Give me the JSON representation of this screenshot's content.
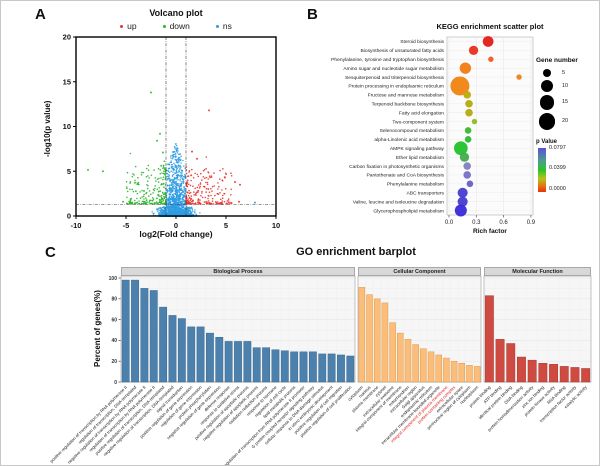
{
  "figure": {
    "panel_a_label": "A",
    "panel_b_label": "B",
    "panel_c_label": "C"
  },
  "chart_data": [
    {
      "panel": "A",
      "type": "scatter",
      "title": "Volcano plot",
      "xlabel": "log2(Fold change)",
      "ylabel": "-log10(p value)",
      "xlim": [
        -10,
        10
      ],
      "ylim": [
        0,
        20
      ],
      "xticks": [
        -10,
        -5,
        0,
        5,
        10
      ],
      "yticks": [
        0,
        5,
        10,
        15,
        20
      ],
      "threshold_lines": {
        "vertical_x": [
          -1,
          1
        ],
        "horizontal_y": 1.3
      },
      "legend": [
        {
          "label": "up",
          "color": "#e8342c"
        },
        {
          "label": "down",
          "color": "#2db52b"
        },
        {
          "label": "ns",
          "color": "#2f9ce3"
        }
      ],
      "point_counts": {
        "up": 240,
        "down": 240,
        "ns": 2600
      },
      "notable_points": {
        "down": [
          [
            -2.5,
            13.8
          ],
          [
            -8.8,
            5.15
          ],
          [
            -7.3,
            5.0
          ],
          [
            -5.3,
            1.6
          ],
          [
            -1.6,
            9.2
          ],
          [
            -1.9,
            8.4
          ],
          [
            -1.3,
            7.1
          ]
        ],
        "up": [
          [
            3.3,
            11.8
          ],
          [
            5.9,
            3.8
          ],
          [
            6.4,
            3.5
          ],
          [
            4.9,
            4.3
          ],
          [
            6.3,
            1.6
          ],
          [
            1.6,
            7.2
          ],
          [
            2.1,
            6.4
          ]
        ],
        "ns": [
          [
            7.9,
            1.5
          ]
        ]
      }
    },
    {
      "panel": "B",
      "type": "bubble",
      "title": "KEGG enrichment scatter plot",
      "xlabel": "Rich factor",
      "xticks": [
        "0.0",
        "0.3",
        "0.6",
        "0.9"
      ],
      "pathways": [
        {
          "name": "Steroid biosynthesis",
          "rich_factor": 0.43,
          "gene_number": 8,
          "color": "#e31e1a"
        },
        {
          "name": "Biosynthesis of unsaturated fatty acids",
          "rich_factor": 0.27,
          "gene_number": 6,
          "color": "#e8321f"
        },
        {
          "name": "Phenylalanine, tyrosine and tryptophan biosynthesis",
          "rich_factor": 0.46,
          "gene_number": 2,
          "color": "#ef5c1e"
        },
        {
          "name": "Amino sugar and nucleotide sugar metabolism",
          "rich_factor": 0.18,
          "gene_number": 9,
          "color": "#f07d15"
        },
        {
          "name": "Sesquiterpenoid and triterpenoid biosynthesis",
          "rich_factor": 0.77,
          "gene_number": 2,
          "color": "#ef8018"
        },
        {
          "name": "Protein processing in endoplasmic reticulum",
          "rich_factor": 0.12,
          "gene_number": 25,
          "color": "#f08413"
        },
        {
          "name": "Fructose and mannose metabolism",
          "rich_factor": 0.2,
          "gene_number": 4,
          "color": "#bfa90e"
        },
        {
          "name": "Terpenoid backbone biosynthesis",
          "rich_factor": 0.22,
          "gene_number": 4,
          "color": "#b3ab12"
        },
        {
          "name": "Fatty acid elongation",
          "rich_factor": 0.22,
          "gene_number": 4,
          "color": "#b3ab12"
        },
        {
          "name": "Two-component system",
          "rich_factor": 0.28,
          "gene_number": 2,
          "color": "#8fbc1a"
        },
        {
          "name": "Selenocompound metabolism",
          "rich_factor": 0.21,
          "gene_number": 3,
          "color": "#3bb92f"
        },
        {
          "name": "alpha-Linolenic acid metabolism",
          "rich_factor": 0.21,
          "gene_number": 3,
          "color": "#2fbb35"
        },
        {
          "name": "AMPK signaling pathway",
          "rich_factor": 0.13,
          "gene_number": 13,
          "color": "#24c32e"
        },
        {
          "name": "Ether lipid metabolism",
          "rich_factor": 0.17,
          "gene_number": 6,
          "color": "#46ad4e"
        },
        {
          "name": "Carbon fixation in photosynthetic organisms",
          "rich_factor": 0.2,
          "gene_number": 4,
          "color": "#8282bf"
        },
        {
          "name": "Pantothenate and CoA biosynthesis",
          "rich_factor": 0.2,
          "gene_number": 4,
          "color": "#7a72c8"
        },
        {
          "name": "Phenylalanine metabolism",
          "rich_factor": 0.23,
          "gene_number": 3,
          "color": "#6a5ecd"
        },
        {
          "name": "ABC transporters",
          "rich_factor": 0.15,
          "gene_number": 7,
          "color": "#4a3dd2"
        },
        {
          "name": "Valine, leucine and isoleucine degradation",
          "rich_factor": 0.15,
          "gene_number": 7,
          "color": "#4a3dd2"
        },
        {
          "name": "Glycerophospholipid metabolism",
          "rich_factor": 0.13,
          "gene_number": 10,
          "color": "#3a2cd8"
        }
      ],
      "legend_gene_number": {
        "title": "Gene number",
        "sizes": [
          5,
          10,
          15,
          20
        ]
      },
      "legend_p_value": {
        "title": "p Value",
        "ticks": [
          "0.0797",
          "0.0399",
          "0.0000"
        ]
      }
    },
    {
      "panel": "C",
      "type": "bar",
      "title": "GO enrichment barplot",
      "ylabel": "Percent of genes(%)",
      "yticks": [
        0,
        20,
        40,
        60,
        80,
        100
      ],
      "facets": [
        {
          "name": "Biological Process",
          "bar_color": "#4d81ad",
          "bar_edge": "#3a678f",
          "bars": [
            {
              "label": "positive regulation of transcription by RNA polymerase II",
              "value": 98
            },
            {
              "label": "regulation of transcription, DNA-templated",
              "value": 98
            },
            {
              "label": "negative regulation of transcription by RNA polymerase II",
              "value": 90
            },
            {
              "label": "regulation of transcription by RNA polymerase II",
              "value": 88
            },
            {
              "label": "positive regulation of transcription, DNA-templated",
              "value": 72
            },
            {
              "label": "negative regulation of transcription, DNA-templated",
              "value": 64
            },
            {
              "label": "signal transduction",
              "value": 61
            },
            {
              "label": "positive regulation of gene expression",
              "value": 53
            },
            {
              "label": "regulation of gene expression",
              "value": 53
            },
            {
              "label": "protein phosphorylation",
              "value": 47
            },
            {
              "label": "negative regulation of gene expression",
              "value": 43
            },
            {
              "label": "defense response",
              "value": 39
            },
            {
              "label": "response to oxidative stress",
              "value": 39
            },
            {
              "label": "positive regulation of apoptotic process",
              "value": 39
            },
            {
              "label": "negative regulation of apoptotic process",
              "value": 33
            },
            {
              "label": "oxidation-reduction process",
              "value": 33
            },
            {
              "label": "response to hormone",
              "value": 31
            },
            {
              "label": "regulation of cell cycle",
              "value": 30
            },
            {
              "label": "lipid metabolic process",
              "value": 29
            },
            {
              "label": "regulation of transcription from RNA polymerase II promoter",
              "value": 29
            },
            {
              "label": "G protein-coupled receptor signaling pathway",
              "value": 29
            },
            {
              "label": "cellular response to DNA damage stimulus",
              "value": 27
            },
            {
              "label": "in utero embryonic development",
              "value": 27
            },
            {
              "label": "positive regulation of cell migration",
              "value": 26
            },
            {
              "label": "positive regulation of cell proliferation",
              "value": 25
            }
          ]
        },
        {
          "name": "Cellular Component",
          "bar_color": "#fbbd77",
          "bar_edge": "#dd9c55",
          "bars": [
            {
              "label": "cytoplasm",
              "value": 91
            },
            {
              "label": "nucleus",
              "value": 84
            },
            {
              "label": "plasma membrane",
              "value": 80
            },
            {
              "label": "cytosol",
              "value": 76
            },
            {
              "label": "extracellular exosome",
              "value": 57
            },
            {
              "label": "integral component of membrane",
              "value": 47
            },
            {
              "label": "mitochondrion",
              "value": 41
            },
            {
              "label": "extracellular region",
              "value": 36
            },
            {
              "label": "Golgi apparatus",
              "value": 32
            },
            {
              "label": "endoplasmic reticulum",
              "value": 29
            },
            {
              "label": "intracellular membrane-bounded organelle",
              "value": 26
            },
            {
              "label": "integral component of plasma membrane",
              "value": 23,
              "highlight": true
            },
            {
              "label": "protein-containing complex",
              "value": 20,
              "highlight": true
            },
            {
              "label": "extracellular space",
              "value": 18
            },
            {
              "label": "perinuclear region of cytoplasm",
              "value": 16
            },
            {
              "label": "nucleoplasm",
              "value": 15
            }
          ]
        },
        {
          "name": "Molecular Function",
          "bar_color": "#cf4a41",
          "bar_edge": "#a53a32",
          "bars": [
            {
              "label": "protein binding",
              "value": 83
            },
            {
              "label": "ATP binding",
              "value": 41
            },
            {
              "label": "identical protein binding",
              "value": 37
            },
            {
              "label": "DNA binding",
              "value": 24
            },
            {
              "label": "protein homodimerization activity",
              "value": 21
            },
            {
              "label": "zinc ion binding",
              "value": 18
            },
            {
              "label": "protein kinase activity",
              "value": 17
            },
            {
              "label": "RNA binding",
              "value": 15
            },
            {
              "label": "transcription factor activity",
              "value": 14
            },
            {
              "label": "catalytic activity",
              "value": 13
            }
          ]
        }
      ]
    }
  ]
}
